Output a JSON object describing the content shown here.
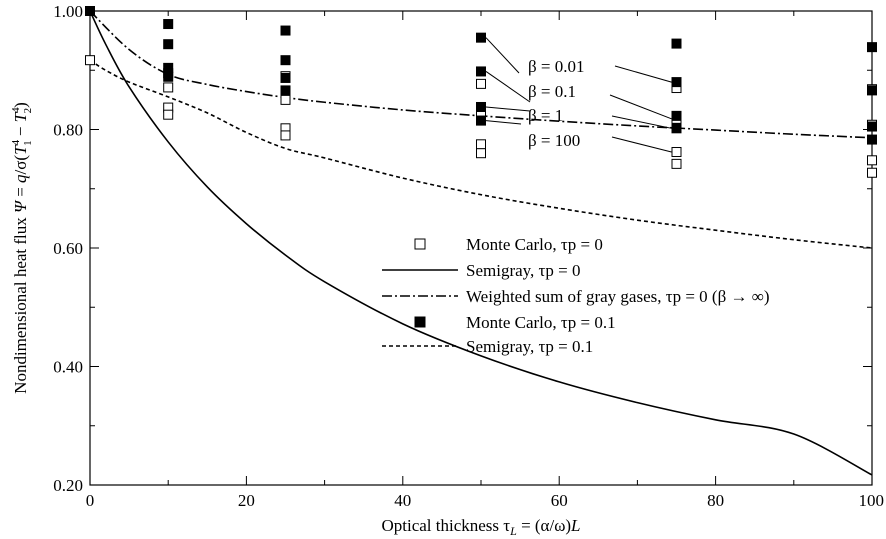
{
  "chart_data": {
    "type": "line",
    "xlabel": "Optical thickness τL = (α/ω)L",
    "ylabel": "Nondimensional heat flux Ψ = q/σ(T1⁴ − T2⁴)",
    "xlim": [
      0,
      100
    ],
    "ylim": [
      0.2,
      1.0
    ],
    "x_ticks": [
      "0",
      "20",
      "40",
      "60",
      "80",
      "100"
    ],
    "y_ticks": [
      "0.20",
      "0.40",
      "0.60",
      "0.80",
      "1.00"
    ],
    "grid": false,
    "legend_placement": "center-right",
    "series": [
      {
        "name": "Monte Carlo, τp = 0",
        "kind": "scatter",
        "marker": "open-square",
        "color": "#000000",
        "points": [
          [
            0,
            0.917
          ],
          [
            10,
            0.895
          ],
          [
            10,
            0.871
          ],
          [
            10,
            0.837
          ],
          [
            10,
            0.825
          ],
          [
            25,
            0.89
          ],
          [
            25,
            0.85
          ],
          [
            25,
            0.802
          ],
          [
            25,
            0.79
          ],
          [
            50,
            0.877
          ],
          [
            50,
            0.83
          ],
          [
            50,
            0.775
          ],
          [
            50,
            0.76
          ],
          [
            75,
            0.87
          ],
          [
            75,
            0.818
          ],
          [
            75,
            0.762
          ],
          [
            75,
            0.742
          ],
          [
            100,
            0.868
          ],
          [
            100,
            0.808
          ],
          [
            100,
            0.748
          ],
          [
            100,
            0.727
          ]
        ]
      },
      {
        "name": "Semigray, τp = 0",
        "kind": "line",
        "dash": "solid",
        "color": "#000000",
        "x": [
          0,
          2,
          5,
          10,
          15,
          20,
          25,
          30,
          40,
          50,
          60,
          70,
          80,
          90,
          100
        ],
        "y": [
          1.0,
          0.944,
          0.872,
          0.779,
          0.703,
          0.641,
          0.588,
          0.543,
          0.472,
          0.418,
          0.374,
          0.339,
          0.31,
          0.286,
          0.217
        ]
      },
      {
        "name": "Weighted sum of gray gases, τp = 0 (β → ∞)",
        "kind": "line",
        "dash": "dashdot",
        "color": "#000000",
        "x": [
          0,
          5,
          10,
          15,
          20,
          25,
          30,
          40,
          50,
          60,
          70,
          80,
          90,
          100
        ],
        "y": [
          1.0,
          0.935,
          0.893,
          0.876,
          0.864,
          0.854,
          0.846,
          0.833,
          0.823,
          0.814,
          0.806,
          0.799,
          0.792,
          0.786
        ]
      },
      {
        "name": "Monte Carlo, τp = 0.1",
        "kind": "scatter",
        "marker": "filled-square",
        "color": "#000000",
        "points": [
          [
            0,
            1.0
          ],
          [
            10,
            0.978
          ],
          [
            10,
            0.944
          ],
          [
            10,
            0.904
          ],
          [
            10,
            0.889
          ],
          [
            25,
            0.967
          ],
          [
            25,
            0.917
          ],
          [
            25,
            0.887
          ],
          [
            25,
            0.866
          ],
          [
            50,
            0.955
          ],
          [
            50,
            0.898
          ],
          [
            50,
            0.838
          ],
          [
            50,
            0.815
          ],
          [
            75,
            0.945
          ],
          [
            75,
            0.88
          ],
          [
            75,
            0.823
          ],
          [
            75,
            0.802
          ],
          [
            100,
            0.939
          ],
          [
            100,
            0.866
          ],
          [
            100,
            0.805
          ],
          [
            100,
            0.783
          ]
        ]
      },
      {
        "name": "Semigray, τp = 0.1",
        "kind": "line",
        "dash": "dashed",
        "color": "#000000",
        "x": [
          0,
          2,
          5,
          10,
          15,
          20,
          25,
          30,
          40,
          50,
          60,
          70,
          80,
          90,
          100
        ],
        "y": [
          0.917,
          0.9,
          0.88,
          0.855,
          0.828,
          0.795,
          0.768,
          0.752,
          0.718,
          0.69,
          0.667,
          0.647,
          0.63,
          0.614,
          0.6
        ]
      }
    ],
    "annotations": [
      "β = 0.01",
      "β = 0.1",
      "β = 1",
      "β = 100"
    ]
  }
}
